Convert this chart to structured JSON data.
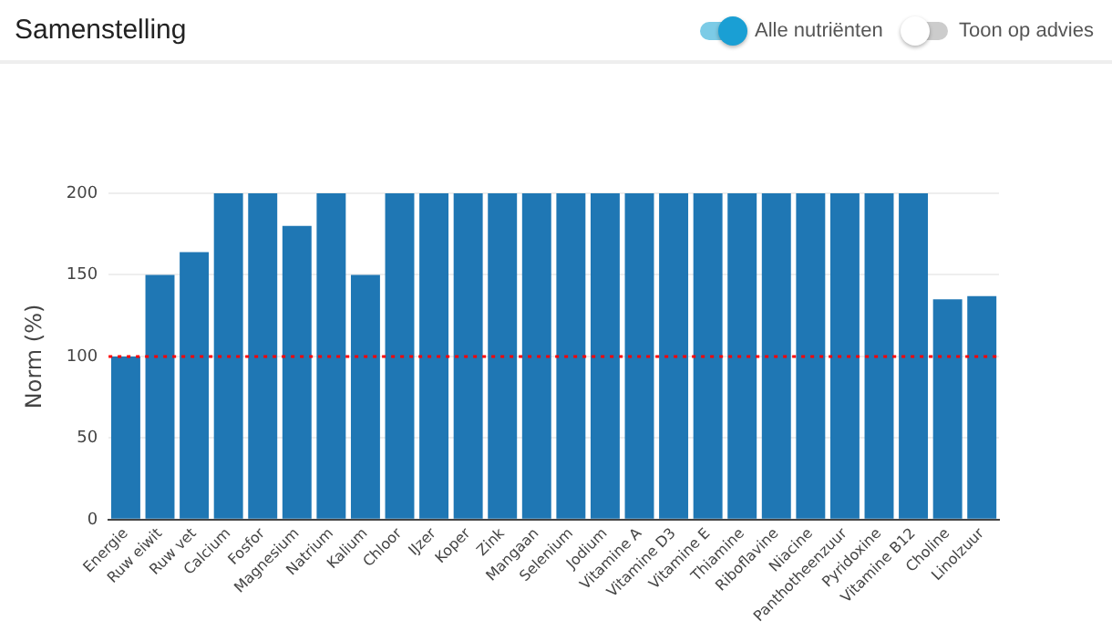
{
  "chart_data": {
    "type": "bar",
    "title": "Samenstelling",
    "ylabel": "Norm (%)",
    "categories": [
      "Energie",
      "Ruw eiwit",
      "Ruw vet",
      "Calcium",
      "Fosfor",
      "Magnesium",
      "Natrium",
      "Kalium",
      "Chloor",
      "IJzer",
      "Koper",
      "Zink",
      "Mangaan",
      "Selenium",
      "Jodium",
      "Vitamine A",
      "Vitamine D3",
      "Vitamine E",
      "Thiamine",
      "Riboflavine",
      "Niacine",
      "Panthotheenzuur",
      "Pyridoxine",
      "Vitamine B12",
      "Choline",
      "Linolzuur"
    ],
    "values": [
      100,
      150,
      164,
      200,
      200,
      180,
      200,
      150,
      200,
      200,
      200,
      200,
      200,
      200,
      200,
      200,
      200,
      200,
      200,
      200,
      200,
      200,
      200,
      200,
      135,
      137
    ],
    "color": "#1f77b4",
    "ylim": [
      0,
      200
    ],
    "yticks": [
      0,
      50,
      100,
      150,
      200
    ],
    "grid": "y",
    "legend": false,
    "ref_lines": [
      {
        "axis": "y",
        "value": 100,
        "color": "#ff0000",
        "line_style": "dotted"
      }
    ],
    "annotations": [
      "Alle nutriënten",
      "Toon op advies"
    ]
  }
}
